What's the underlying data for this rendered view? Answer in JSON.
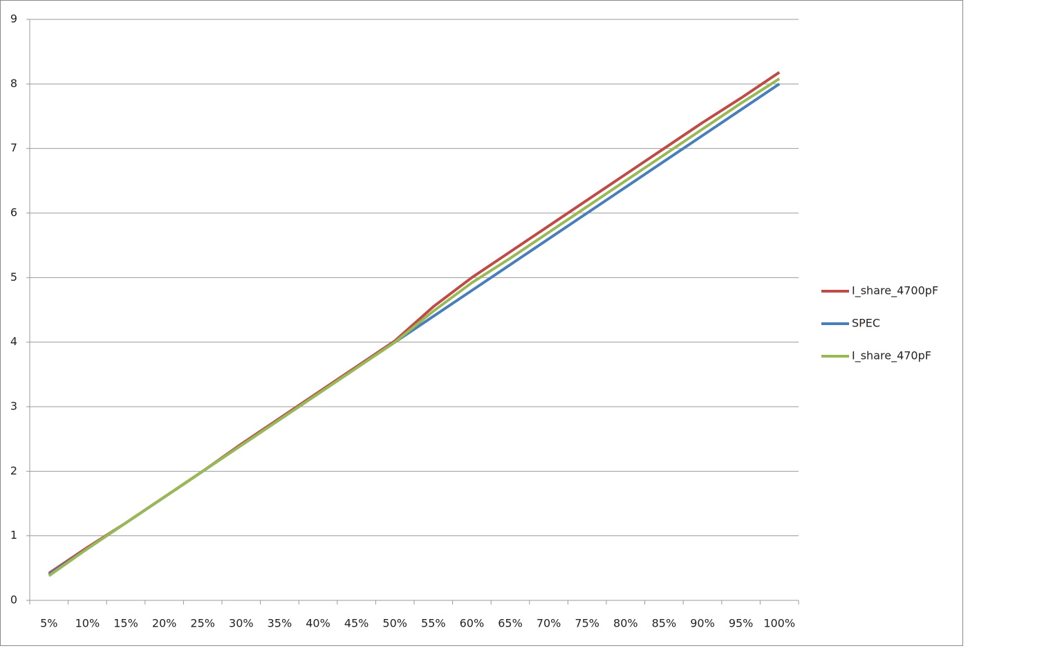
{
  "chart_data": {
    "type": "line",
    "categories": [
      "5%",
      "10%",
      "15%",
      "20%",
      "25%",
      "30%",
      "35%",
      "40%",
      "45%",
      "50%",
      "55%",
      "60%",
      "65%",
      "70%",
      "75%",
      "80%",
      "85%",
      "90%",
      "95%",
      "100%"
    ],
    "series": [
      {
        "name": "I_share_4700pF",
        "color": "#be4b48",
        "values": [
          0.42,
          0.82,
          1.2,
          1.6,
          2.0,
          2.42,
          2.82,
          3.22,
          3.62,
          4.02,
          4.55,
          5.0,
          5.4,
          5.8,
          6.2,
          6.6,
          7.0,
          7.4,
          7.78,
          8.18
        ]
      },
      {
        "name": "SPEC",
        "color": "#4a7ebb",
        "values": [
          0.4,
          0.8,
          1.2,
          1.6,
          2.0,
          2.4,
          2.8,
          3.2,
          3.6,
          4.0,
          4.4,
          4.8,
          5.2,
          5.6,
          6.0,
          6.4,
          6.8,
          7.2,
          7.6,
          8.0
        ]
      },
      {
        "name": "I_share_470pF",
        "color": "#98b954",
        "values": [
          0.38,
          0.8,
          1.2,
          1.6,
          2.0,
          2.4,
          2.8,
          3.2,
          3.6,
          4.0,
          4.48,
          4.92,
          5.3,
          5.7,
          6.1,
          6.5,
          6.9,
          7.3,
          7.7,
          8.08
        ]
      }
    ],
    "ylim": [
      0,
      9
    ],
    "yticks": [
      0,
      1,
      2,
      3,
      4,
      5,
      6,
      7,
      8,
      9
    ],
    "grid": true,
    "legend": "right"
  }
}
